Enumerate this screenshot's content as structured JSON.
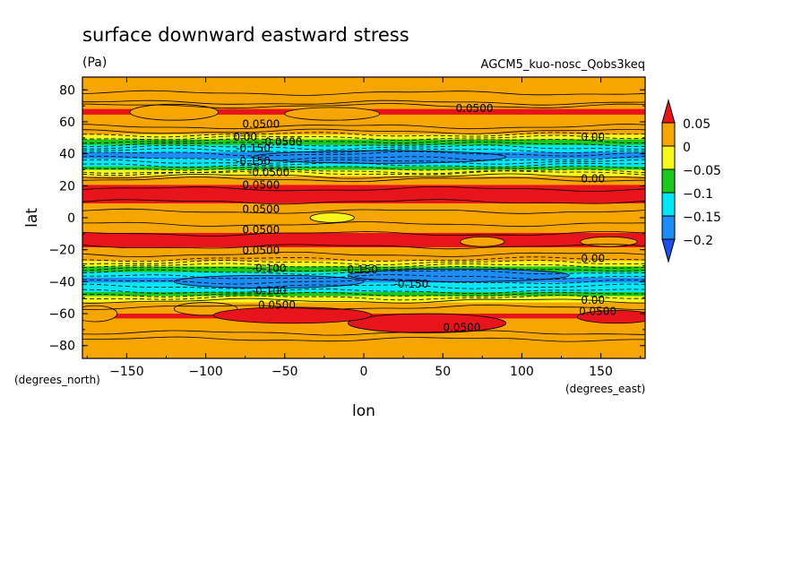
{
  "chart_data": {
    "type": "heatmap",
    "title": "surface downward eastward stress",
    "units": "(Pa)",
    "subtitle": "AGCM5_kuo-nosc_Qobs3keq",
    "xlabel": "lon",
    "ylabel": "lat",
    "x_units": "(degrees_east)",
    "y_units": "(degrees_north)",
    "xlim": [
      -178,
      178
    ],
    "ylim": [
      -88,
      88
    ],
    "x_ticks": [
      -150,
      -100,
      -50,
      0,
      50,
      100,
      150
    ],
    "x_tick_labels": [
      "−150",
      "−100",
      "−50",
      "0",
      "50",
      "100",
      "150"
    ],
    "y_ticks": [
      80,
      60,
      40,
      20,
      0,
      -20,
      -40,
      -60,
      -80
    ],
    "y_tick_labels": [
      "80",
      "60",
      "40",
      "20",
      "0",
      "−20",
      "−40",
      "−60",
      "−80"
    ],
    "colorbar": {
      "levels": [
        0.05,
        0,
        -0.05,
        -0.1,
        -0.15,
        -0.2
      ],
      "labels": [
        "0.05",
        "0",
        "−0.05",
        "−0.1",
        "−0.15",
        "−0.2"
      ],
      "colors": [
        "#e8141c",
        "#f7a600",
        "#f7f71c",
        "#1cc81c",
        "#00e8f7",
        "#1c8cf7",
        "#1c50e8"
      ]
    },
    "zonal_profile": [
      {
        "lat": 88,
        "value": 0.02
      },
      {
        "lat": 76,
        "value": 0.03
      },
      {
        "lat": 66,
        "value": 0.055
      },
      {
        "lat": 58,
        "value": 0.03
      },
      {
        "lat": 52,
        "value": 0.0
      },
      {
        "lat": 47,
        "value": -0.08
      },
      {
        "lat": 40,
        "value": -0.16
      },
      {
        "lat": 34,
        "value": -0.14
      },
      {
        "lat": 30,
        "value": -0.05
      },
      {
        "lat": 26,
        "value": 0.0
      },
      {
        "lat": 20,
        "value": 0.055
      },
      {
        "lat": 13,
        "value": 0.07
      },
      {
        "lat": 7,
        "value": 0.04
      },
      {
        "lat": 0,
        "value": 0.02
      },
      {
        "lat": -7,
        "value": 0.04
      },
      {
        "lat": -14,
        "value": 0.07
      },
      {
        "lat": -21,
        "value": 0.04
      },
      {
        "lat": -27,
        "value": 0.0
      },
      {
        "lat": -32,
        "value": -0.07
      },
      {
        "lat": -38,
        "value": -0.16
      },
      {
        "lat": -45,
        "value": -0.13
      },
      {
        "lat": -50,
        "value": -0.03
      },
      {
        "lat": -54,
        "value": 0.01
      },
      {
        "lat": -61,
        "value": 0.055
      },
      {
        "lat": -70,
        "value": 0.03
      },
      {
        "lat": -80,
        "value": 0.01
      },
      {
        "lat": -88,
        "value": 0.0
      }
    ],
    "features": [
      {
        "type": "contour_band",
        "description_value": 0.0,
        "lat_center": 0,
        "lon_center": -20,
        "value": -0.02
      },
      {
        "type": "contour_band",
        "lat_center": -66,
        "lon_center": 60,
        "value": 0.06
      }
    ],
    "contour_labels": [
      {
        "text": "0.0500",
        "lon": -65,
        "lat": 59
      },
      {
        "text": "0.0500",
        "lon": 70,
        "lat": 69
      },
      {
        "text": "0.00",
        "lon": 145,
        "lat": 51
      },
      {
        "text": "0.00",
        "lon": -75,
        "lat": 51
      },
      {
        "text": "-0.0500",
        "lon": -52,
        "lat": 48
      },
      {
        "text": "-0.150",
        "lon": -70,
        "lat": 44
      },
      {
        "text": "-0.150",
        "lon": -70,
        "lat": 36
      },
      {
        "text": "-0.0500",
        "lon": -60,
        "lat": 29
      },
      {
        "text": "0.00",
        "lon": 145,
        "lat": 25
      },
      {
        "text": "0.0500",
        "lon": -65,
        "lat": 21
      },
      {
        "text": "0.0500",
        "lon": -65,
        "lat": 6
      },
      {
        "text": "0.0500",
        "lon": -65,
        "lat": -7
      },
      {
        "text": "0.0500",
        "lon": -65,
        "lat": -20
      },
      {
        "text": "0.00",
        "lon": 145,
        "lat": -25
      },
      {
        "text": "-0.100",
        "lon": -60,
        "lat": -31
      },
      {
        "text": "-0.150",
        "lon": -2,
        "lat": -32
      },
      {
        "text": "-0.150",
        "lon": 30,
        "lat": -41
      },
      {
        "text": "-0.100",
        "lon": -60,
        "lat": -45
      },
      {
        "text": "0.00",
        "lon": 145,
        "lat": -51
      },
      {
        "text": "0.0500",
        "lon": -55,
        "lat": -54
      },
      {
        "text": "0.0500",
        "lon": 148,
        "lat": -58
      },
      {
        "text": "0.0500",
        "lon": 62,
        "lat": -68
      }
    ]
  }
}
